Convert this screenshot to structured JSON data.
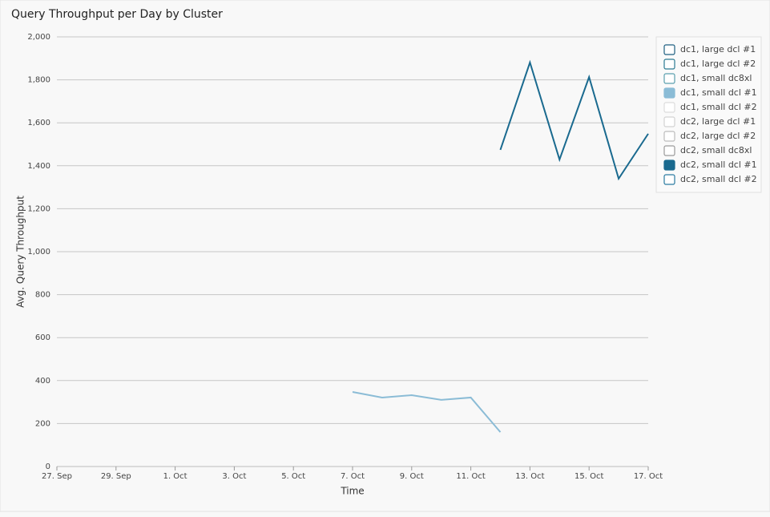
{
  "chart_data": {
    "type": "line",
    "title": "Query Throughput per Day by Cluster",
    "x_label": "Time",
    "y_label": "Avg. Query Throughput",
    "categories": [
      "27. Sep",
      null,
      "29. Sep",
      null,
      "1. Oct",
      null,
      "3. Oct",
      null,
      "5. Oct",
      null,
      "7. Oct",
      null,
      "9. Oct",
      null,
      "11. Oct",
      null,
      "13. Oct",
      null,
      "15. Oct",
      null,
      "17. Oct"
    ],
    "series": [
      {
        "name": "dc1, large dcl #1",
        "color": "#1d5f80",
        "visible": false,
        "values": [
          null,
          null,
          null,
          null,
          null,
          null,
          null,
          null,
          null,
          null,
          null,
          null,
          null,
          null,
          null,
          null,
          null,
          null,
          null,
          null,
          null
        ]
      },
      {
        "name": "dc1, large dcl #2",
        "color": "#2b7a92",
        "visible": false,
        "values": [
          null,
          null,
          null,
          null,
          null,
          null,
          null,
          null,
          null,
          null,
          null,
          null,
          null,
          null,
          null,
          null,
          null,
          null,
          null,
          null,
          null
        ]
      },
      {
        "name": "dc1, small dc8xl",
        "color": "#5a9fae",
        "visible": false,
        "values": [
          null,
          null,
          null,
          null,
          null,
          null,
          null,
          null,
          null,
          null,
          null,
          null,
          null,
          null,
          null,
          null,
          null,
          null,
          null,
          null,
          null
        ]
      },
      {
        "name": "dc1, small dcl #1",
        "color": "#8bbcd6",
        "visible": true,
        "values": [
          null,
          null,
          null,
          null,
          null,
          null,
          null,
          null,
          null,
          null,
          347,
          321,
          332,
          310,
          321,
          160,
          null,
          null,
          null,
          null,
          null
        ]
      },
      {
        "name": "dc1, small dcl #2",
        "color": "#dcdcdc",
        "visible": false,
        "values": [
          null,
          null,
          null,
          null,
          null,
          null,
          null,
          null,
          null,
          null,
          null,
          null,
          null,
          null,
          null,
          null,
          null,
          null,
          null,
          null,
          null
        ]
      },
      {
        "name": "dc2, large dcl #1",
        "color": "#d2d2d2",
        "visible": false,
        "values": [
          null,
          null,
          null,
          null,
          null,
          null,
          null,
          null,
          null,
          null,
          null,
          null,
          null,
          null,
          null,
          null,
          null,
          null,
          null,
          null,
          null
        ]
      },
      {
        "name": "dc2, large dcl #2",
        "color": "#bcbcbc",
        "visible": false,
        "values": [
          null,
          null,
          null,
          null,
          null,
          null,
          null,
          null,
          null,
          null,
          null,
          null,
          null,
          null,
          null,
          null,
          null,
          null,
          null,
          null,
          null
        ]
      },
      {
        "name": "dc2, small dc8xl",
        "color": "#9a9a9a",
        "visible": false,
        "values": [
          null,
          null,
          null,
          null,
          null,
          null,
          null,
          null,
          null,
          null,
          null,
          null,
          null,
          null,
          null,
          null,
          null,
          null,
          null,
          null,
          null
        ]
      },
      {
        "name": "dc2, small dcl #1",
        "color": "#1a6a8f",
        "visible": true,
        "values": [
          null,
          null,
          null,
          null,
          null,
          null,
          null,
          null,
          null,
          null,
          null,
          null,
          null,
          null,
          null,
          1474,
          1881,
          1429,
          1813,
          1340,
          1549
        ]
      },
      {
        "name": "dc2, small dcl #2",
        "color": "#2a7aa0",
        "visible": false,
        "values": [
          null,
          null,
          null,
          null,
          null,
          null,
          null,
          null,
          null,
          null,
          null,
          null,
          null,
          null,
          null,
          null,
          null,
          null,
          null,
          null,
          null
        ]
      }
    ],
    "ylim": [
      0,
      2000
    ],
    "yticks": [
      0,
      200,
      400,
      600,
      800,
      {
        "value": 1000,
        "label": "1,000"
      },
      {
        "value": 1200,
        "label": "1,200"
      },
      {
        "value": 1400,
        "label": "1,400"
      },
      {
        "value": 1600,
        "label": "1,600"
      },
      {
        "value": 1800,
        "label": "1,800"
      },
      {
        "value": 2000,
        "label": "2,000"
      }
    ],
    "grid": true,
    "legend": "right"
  }
}
